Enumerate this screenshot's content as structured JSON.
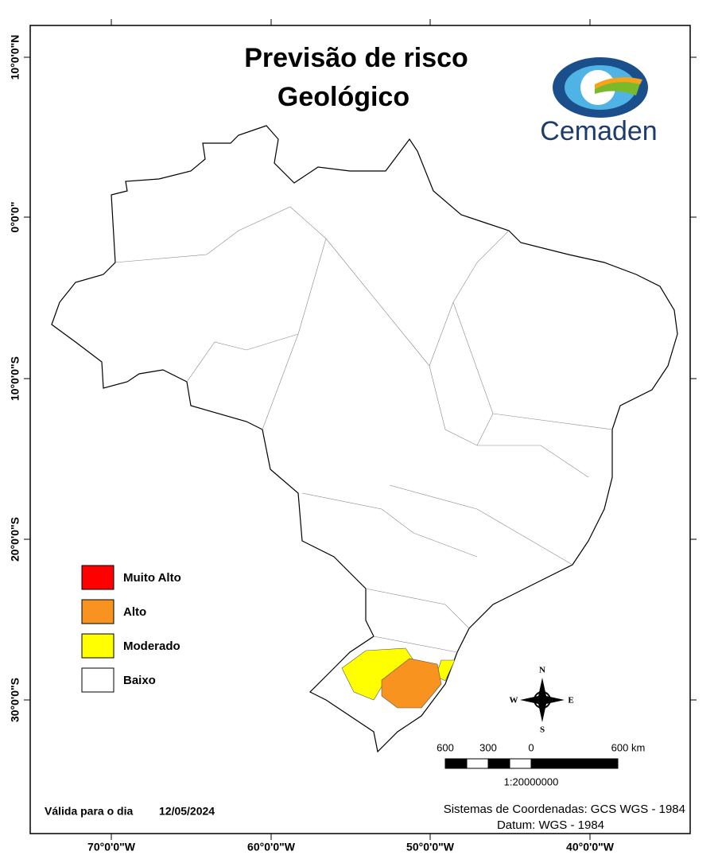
{
  "title": [
    "Previsão de risco",
    "Geológico"
  ],
  "logo": "Cemaden",
  "legend": [
    {
      "label": "Muito Alto",
      "color": "#ff0000"
    },
    {
      "label": "Alto",
      "color": "#f7931e"
    },
    {
      "label": "Moderado",
      "color": "#ffff00"
    },
    {
      "label": "Baixo",
      "color": "#ffffff"
    }
  ],
  "lat_labels": [
    "10°0'0\"N",
    "0°0'0\"",
    "10°0'0\"S",
    "20°0'0\"S",
    "30°0'0\"S"
  ],
  "lon_labels": [
    "70°0'0\"W",
    "60°0'0\"W",
    "50°0'0\"W",
    "40°0'0\"W"
  ],
  "compass": {
    "n": "N",
    "s": "S",
    "e": "E",
    "w": "W"
  },
  "scale": {
    "labels": [
      "600",
      "300",
      "0",
      "600 km"
    ],
    "ratio": "1:20000000"
  },
  "valid": {
    "label": "Válida para o dia",
    "date": "12/05/2024"
  },
  "coords": "Sistemas de Coordenadas: GCS WGS - 1984",
  "datum": "Datum: WGS - 1984"
}
